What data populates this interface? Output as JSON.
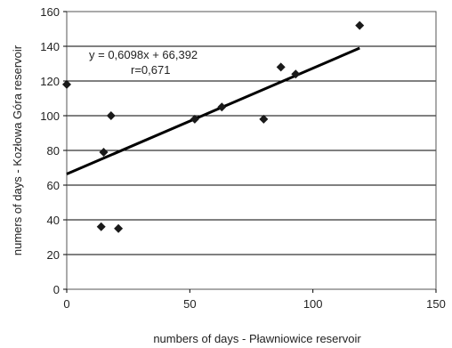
{
  "chart_data": {
    "type": "scatter",
    "xlabel": "numbers of days - Pławniowice  reservoir",
    "ylabel": "numers of days  -  Kozłowa  Góra reservoir",
    "xlim": [
      0,
      150
    ],
    "ylim": [
      0,
      160
    ],
    "x_ticks": [
      "0",
      "50",
      "100",
      "150"
    ],
    "y_ticks": [
      "0",
      "20",
      "40",
      "60",
      "80",
      "100",
      "120",
      "140",
      "160"
    ],
    "grid": "horizontal",
    "points": [
      {
        "x": 0,
        "y": 118
      },
      {
        "x": 14,
        "y": 36
      },
      {
        "x": 15,
        "y": 79
      },
      {
        "x": 18,
        "y": 100
      },
      {
        "x": 21,
        "y": 35
      },
      {
        "x": 52,
        "y": 98
      },
      {
        "x": 63,
        "y": 105
      },
      {
        "x": 80,
        "y": 98
      },
      {
        "x": 87,
        "y": 128
      },
      {
        "x": 93,
        "y": 124
      },
      {
        "x": 119,
        "y": 152
      }
    ],
    "trendline": {
      "slope": 0.6098,
      "intercept": 66.392,
      "x_range": [
        0,
        119
      ]
    },
    "annotations": [
      "y = 0,6098x  + 66,392",
      "r=0,671"
    ]
  }
}
